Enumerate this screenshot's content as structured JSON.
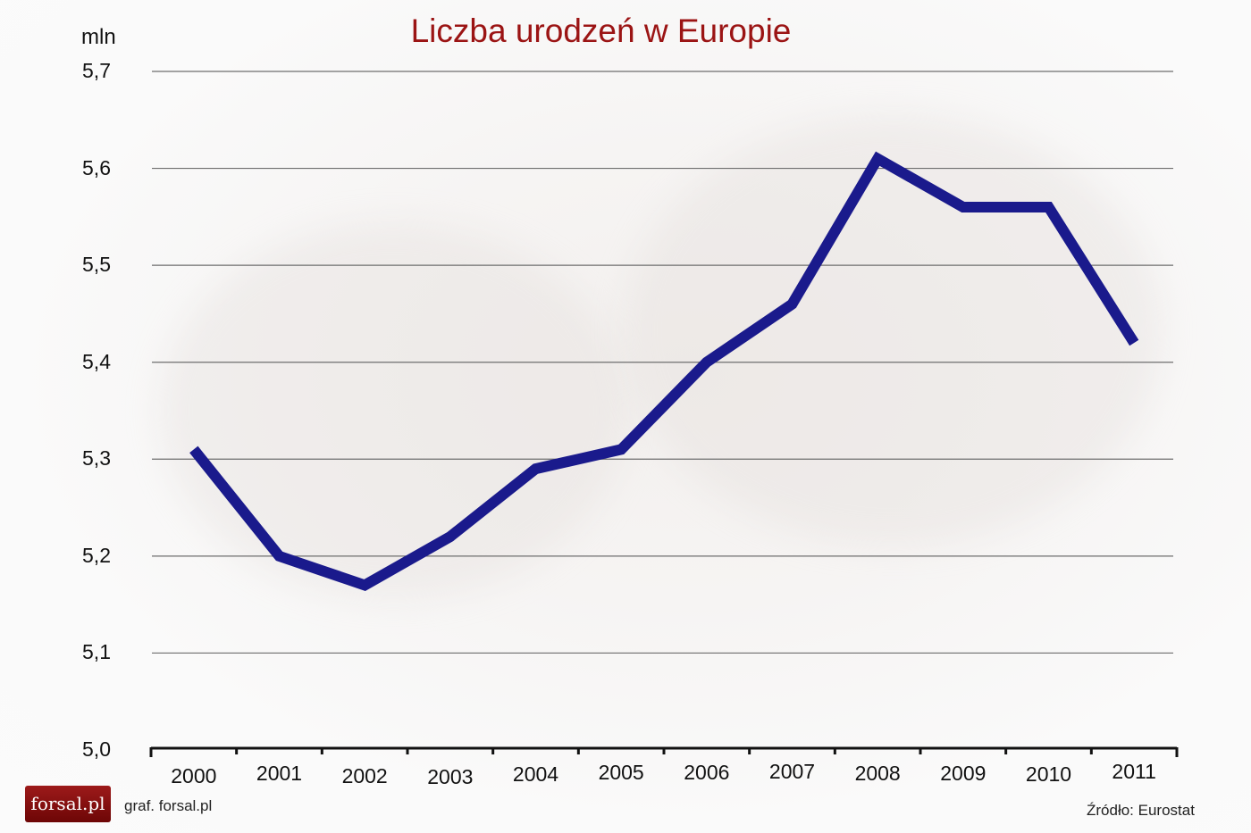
{
  "chart_data": {
    "type": "line",
    "title": "Liczba urodzeń w Europie",
    "xlabel": "",
    "ylabel": "mln",
    "ylim": [
      5.0,
      5.7
    ],
    "grid": true,
    "legend": null,
    "x": [
      "2000",
      "2001",
      "2002",
      "2003",
      "2004",
      "2005",
      "2006",
      "2007",
      "2008",
      "2009",
      "2010",
      "2011"
    ],
    "series": [
      {
        "name": "Liczba urodzeń",
        "color": "#1a1a8c",
        "values": [
          5.31,
          5.2,
          5.17,
          5.22,
          5.29,
          5.31,
          5.4,
          5.46,
          5.61,
          5.56,
          5.56,
          5.42
        ]
      }
    ],
    "y_ticks": [
      "5,0",
      "5,1",
      "5,2",
      "5,3",
      "5,4",
      "5,5",
      "5,6",
      "5,7"
    ]
  },
  "header": {
    "title": "Liczba urodzeń w Europie",
    "unit": "mln"
  },
  "footer": {
    "logo": "forsal.pl",
    "credit": "graf. forsal.pl",
    "source": "Źródło:  Eurostat"
  },
  "colors": {
    "title": "#9b1414",
    "line": "#1a1a8c",
    "logo_bg": "#8a1010"
  }
}
